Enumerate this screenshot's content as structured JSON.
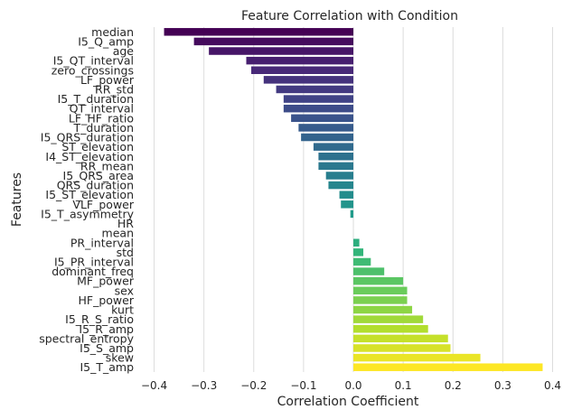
{
  "chart_data": {
    "type": "bar",
    "orientation": "horizontal",
    "title": "Feature Correlation with Condition",
    "xlabel": "Correlation Coefficient",
    "ylabel": "Features",
    "xlim": [
      -0.43,
      0.41
    ],
    "xticks": [
      -0.4,
      -0.3,
      -0.2,
      -0.1,
      0.0,
      0.1,
      0.2,
      0.3,
      0.4
    ],
    "xtick_labels": [
      "−0.4",
      "−0.3",
      "−0.2",
      "−0.1",
      "0.0",
      "0.1",
      "0.2",
      "0.3",
      "0.4"
    ],
    "grid": "vertical",
    "colormap": "viridis",
    "categories": [
      "median",
      "I5_Q_amp",
      "age",
      "I5_QT_interval",
      "zero_crossings",
      "LF_power",
      "RR_std",
      "I5_T_duration",
      "QT_interval",
      "LF_HF_ratio",
      "T_duration",
      "I5_QRS_duration",
      "ST_elevation",
      "I4_ST_elevation",
      "RR_mean",
      "I5_QRS_area",
      "QRS_duration",
      "I5_ST_elevation",
      "VLF_power",
      "I5_T_asymmetry",
      "HR",
      "mean",
      "PR_interval",
      "std",
      "I5_PR_interval",
      "dominant_freq",
      "MF_power",
      "sex",
      "HF_power",
      "kurt",
      "I5_R_S_ratio",
      "I5_R_amp",
      "spectral_entropy",
      "I5_S_amp",
      "skew",
      "I5_T_amp"
    ],
    "values": [
      -0.38,
      -0.32,
      -0.29,
      -0.215,
      -0.205,
      -0.18,
      -0.155,
      -0.14,
      -0.14,
      -0.125,
      -0.11,
      -0.105,
      -0.08,
      -0.07,
      -0.07,
      -0.055,
      -0.05,
      -0.028,
      -0.025,
      -0.006,
      0.0,
      0.0,
      0.012,
      0.02,
      0.035,
      0.062,
      0.1,
      0.108,
      0.108,
      0.118,
      0.14,
      0.15,
      0.19,
      0.195,
      0.255,
      0.38
    ]
  }
}
